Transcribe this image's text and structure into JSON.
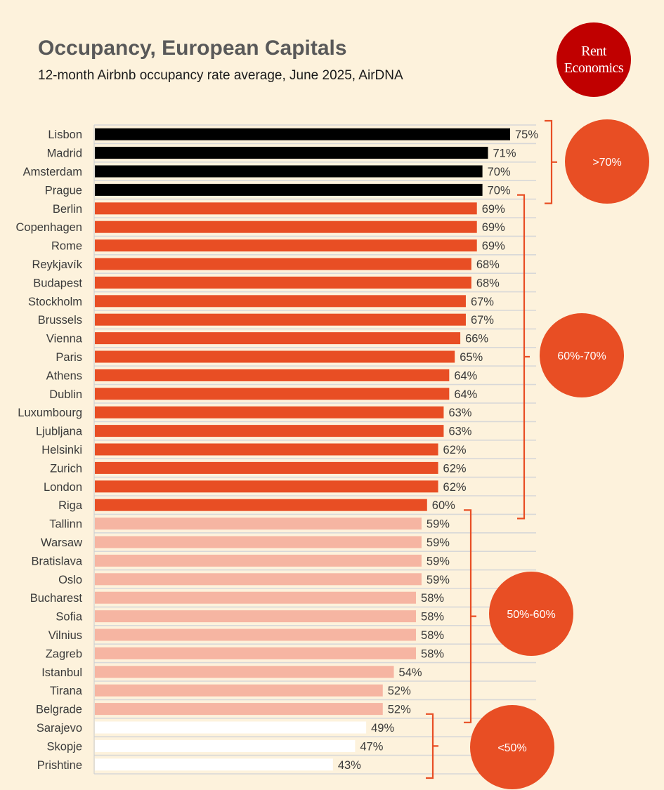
{
  "header": {
    "title": "Occupancy, European Capitals",
    "subtitle": "12-month Airbnb occupancy rate average, June 2025, AirDNA"
  },
  "logo": {
    "line1": "Rent",
    "line2": "Economics"
  },
  "colors": {
    "background": "#fdf2dc",
    "tier_above70": "#000000",
    "tier_60_70": "#e84e24",
    "tier_50_60": "#f6b5a2",
    "tier_below50": "#ffffff",
    "bracket": "#e84e24",
    "badge": "#e84e24",
    "logo": "#c00000"
  },
  "chart_data": {
    "type": "bar",
    "orientation": "horizontal",
    "title": "Occupancy, European Capitals",
    "subtitle": "12-month Airbnb occupancy rate average, June 2025, AirDNA",
    "xlabel": "",
    "ylabel": "",
    "value_suffix": "%",
    "xlim": [
      0,
      80
    ],
    "grid": "horizontal row lines",
    "categories": [
      "Lisbon",
      "Madrid",
      "Amsterdam",
      "Prague",
      "Berlin",
      "Copenhagen",
      "Rome",
      "Reykjavík",
      "Budapest",
      "Stockholm",
      "Brussels",
      "Vienna",
      "Paris",
      "Athens",
      "Dublin",
      "Luxumbourg",
      "Ljubljana",
      "Helsinki",
      "Zurich",
      "London",
      "Riga",
      "Tallinn",
      "Warsaw",
      "Bratislava",
      "Oslo",
      "Bucharest",
      "Sofia",
      "Vilnius",
      "Zagreb",
      "Istanbul",
      "Tirana",
      "Belgrade",
      "Sarajevo",
      "Skopje",
      "Prishtine"
    ],
    "values": [
      75,
      71,
      70,
      70,
      69,
      69,
      69,
      68,
      68,
      67,
      67,
      66,
      65,
      64,
      64,
      63,
      63,
      62,
      62,
      62,
      60,
      59,
      59,
      59,
      59,
      58,
      58,
      58,
      58,
      54,
      52,
      52,
      49,
      47,
      43
    ],
    "data_labels": [
      "75%",
      "71%",
      "70%",
      "70%",
      "69%",
      "69%",
      "69%",
      "68%",
      "68%",
      "67%",
      "67%",
      "66%",
      "65%",
      "64%",
      "64%",
      "63%",
      "63%",
      "62%",
      "62%",
      "62%",
      "60%",
      "59%",
      "59%",
      "59%",
      "59%",
      "58%",
      "58%",
      "58%",
      "58%",
      "54%",
      "52%",
      "52%",
      "49%",
      "47%",
      "43%"
    ],
    "groups": [
      {
        "label": ">70%",
        "color": "#000000",
        "first": 0,
        "last": 3
      },
      {
        "label": "60%-70%",
        "color": "#e84e24",
        "first": 4,
        "last": 20
      },
      {
        "label": "50%-60%",
        "color": "#f6b5a2",
        "first": 21,
        "last": 31
      },
      {
        "label": "<50%",
        "color": "#ffffff",
        "first": 32,
        "last": 34
      }
    ]
  }
}
